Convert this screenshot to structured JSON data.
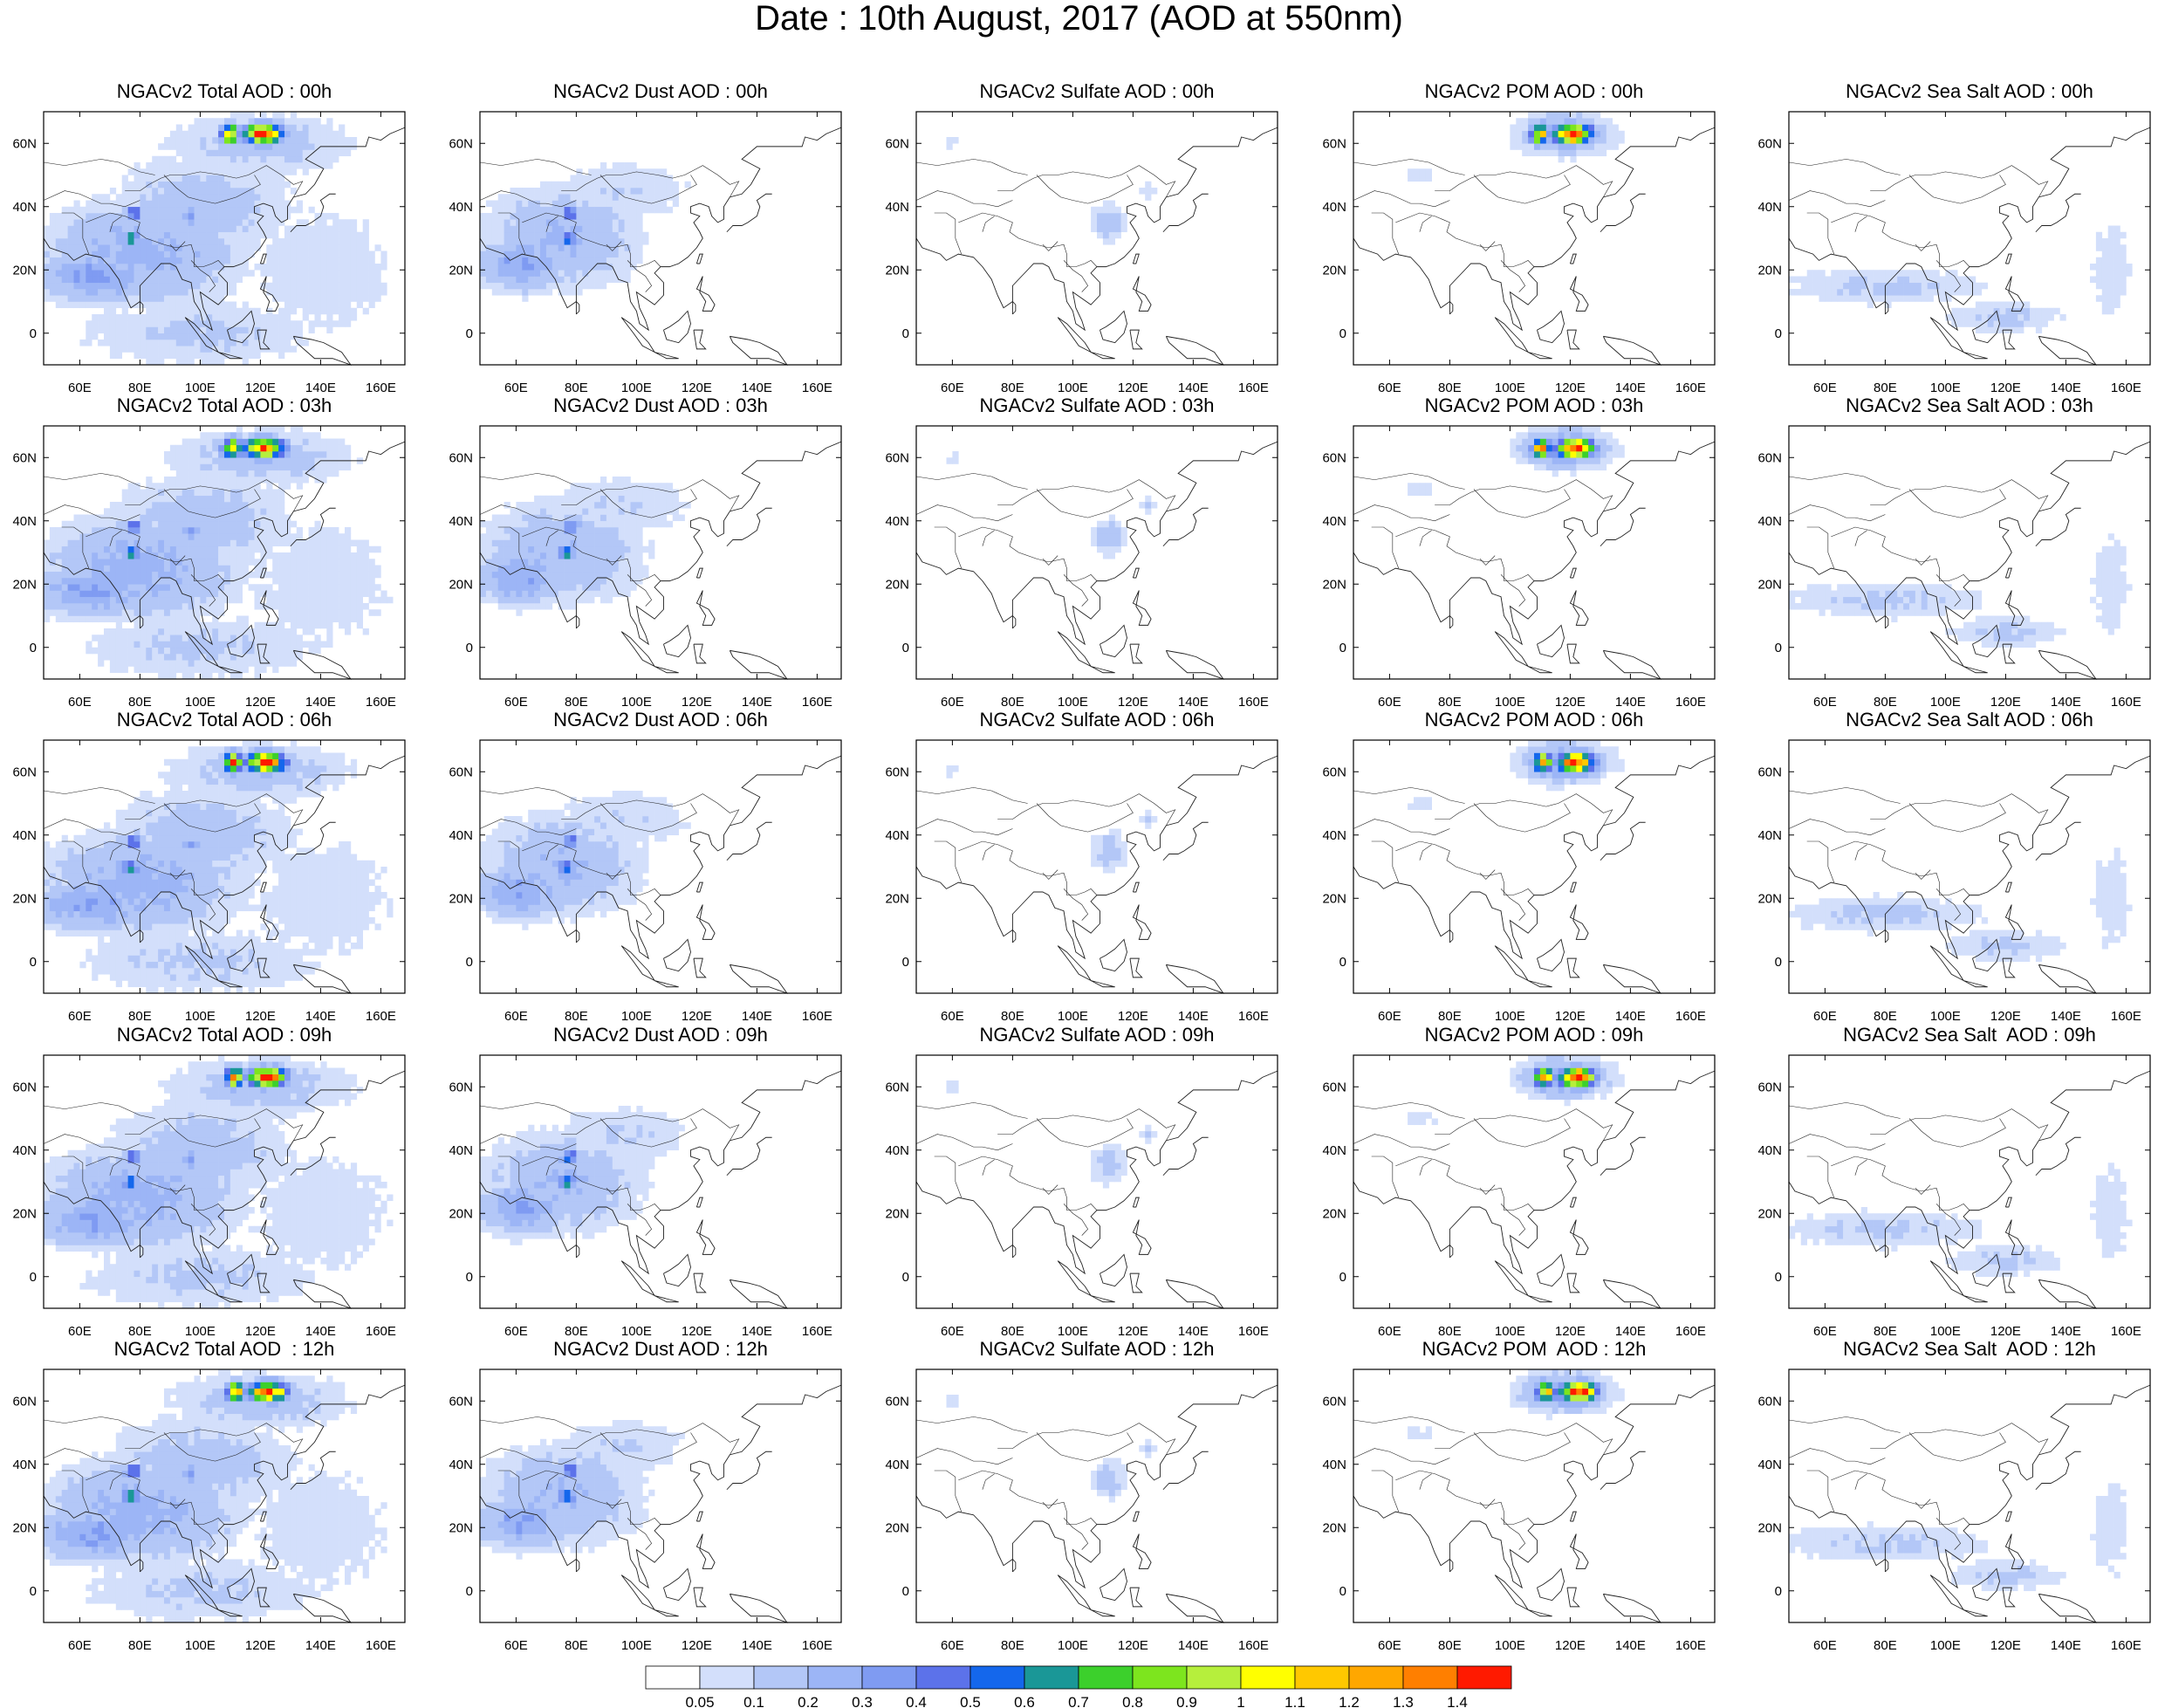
{
  "title": "Date : 10th August, 2017 (AOD at 550nm)",
  "columns": [
    "total",
    "dust",
    "sulfate",
    "pom",
    "seasalt"
  ],
  "panel_titles": [
    [
      "NGACv2 Total AOD : 00h",
      "NGACv2 Dust AOD : 00h",
      "NGACv2 Sulfate AOD : 00h",
      "NGACv2 POM AOD : 00h",
      "NGACv2 Sea Salt AOD : 00h"
    ],
    [
      "NGACv2 Total AOD : 03h",
      "NGACv2 Dust AOD : 03h",
      "NGACv2 Sulfate AOD : 03h",
      "NGACv2 POM AOD : 03h",
      "NGACv2 Sea Salt AOD : 03h"
    ],
    [
      "NGACv2 Total AOD : 06h",
      "NGACv2 Dust AOD : 06h",
      "NGACv2 Sulfate AOD : 06h",
      "NGACv2 POM AOD : 06h",
      "NGACv2 Sea Salt AOD : 06h"
    ],
    [
      "NGACv2 Total AOD : 09h",
      "NGACv2 Dust AOD : 09h",
      "NGACv2 Sulfate AOD : 09h",
      "NGACv2 POM AOD : 09h",
      "NGACv2 Sea Salt  AOD : 09h"
    ],
    [
      "NGACv2 Total AOD  : 12h",
      "NGACv2 Dust AOD : 12h",
      "NGACv2 Sulfate AOD : 12h",
      "NGACv2 POM  AOD : 12h",
      "NGACv2 Sea Salt  AOD : 12h"
    ]
  ],
  "map": {
    "lon_range": [
      48,
      168
    ],
    "lat_range": [
      -10,
      70
    ],
    "x_ticks": [
      "60E",
      "80E",
      "100E",
      "120E",
      "140E",
      "160E"
    ],
    "x_tick_values": [
      60,
      80,
      100,
      120,
      140,
      160
    ],
    "y_ticks": [
      "0",
      "20N",
      "40N",
      "60N"
    ],
    "y_tick_values": [
      0,
      20,
      40,
      60
    ]
  },
  "colorbar": {
    "labels": [
      "0.05",
      "0.1",
      "0.2",
      "0.3",
      "0.4",
      "0.5",
      "0.6",
      "0.7",
      "0.8",
      "0.9",
      "1",
      "1.1",
      "1.2",
      "1.3",
      "1.4"
    ],
    "colors": [
      "#ffffff",
      "#d3dffb",
      "#b3c7f7",
      "#9cb5f6",
      "#7f9bf2",
      "#5c72ea",
      "#1467ec",
      "#1a9797",
      "#3cd02c",
      "#7de51e",
      "#b6ef3c",
      "#ffff00",
      "#ffc800",
      "#ffa700",
      "#ff7f00",
      "#ff1a00"
    ]
  },
  "features": {
    "total": [
      {
        "lon": 80,
        "lat": 25,
        "rx": 30,
        "ry": 15,
        "v": 0.25
      },
      {
        "lon": 65,
        "lat": 18,
        "rx": 20,
        "ry": 8,
        "v": 0.3
      },
      {
        "lon": 100,
        "lat": 40,
        "rx": 30,
        "ry": 15,
        "v": 0.15
      },
      {
        "lon": 120,
        "lat": 60,
        "rx": 30,
        "ry": 9,
        "v": 0.15
      },
      {
        "lon": 140,
        "lat": 20,
        "rx": 30,
        "ry": 25,
        "v": 0.08
      },
      {
        "lon": 100,
        "lat": 0,
        "rx": 40,
        "ry": 10,
        "v": 0.12
      },
      {
        "lon": 78,
        "lat": 38,
        "rx": 3,
        "ry": 2,
        "v": 0.6
      },
      {
        "lon": 77,
        "lat": 30,
        "rx": 2.5,
        "ry": 2,
        "v": 0.75
      },
      {
        "lon": 110,
        "lat": 63,
        "rx": 3,
        "ry": 3,
        "v": 1.2
      },
      {
        "lon": 121,
        "lat": 63,
        "rx": 6,
        "ry": 3,
        "v": 1.45
      },
      {
        "lon": 97,
        "lat": 37,
        "rx": 3,
        "ry": 3,
        "v": 0.35
      }
    ],
    "dust": [
      {
        "lon": 75,
        "lat": 30,
        "rx": 25,
        "ry": 15,
        "v": 0.2
      },
      {
        "lon": 62,
        "lat": 22,
        "rx": 14,
        "ry": 8,
        "v": 0.3
      },
      {
        "lon": 95,
        "lat": 45,
        "rx": 25,
        "ry": 10,
        "v": 0.1
      },
      {
        "lon": 78,
        "lat": 38,
        "rx": 3,
        "ry": 2,
        "v": 0.6
      },
      {
        "lon": 77,
        "lat": 30,
        "rx": 2.5,
        "ry": 2,
        "v": 0.75
      }
    ],
    "sulfate": [
      {
        "lon": 112,
        "lat": 35,
        "rx": 6,
        "ry": 6,
        "v": 0.15
      },
      {
        "lon": 60,
        "lat": 60,
        "rx": 4,
        "ry": 1.5,
        "v": 0.1
      },
      {
        "lon": 125,
        "lat": 45,
        "rx": 3,
        "ry": 3,
        "v": 0.1
      }
    ],
    "pom": [
      {
        "lon": 118,
        "lat": 63,
        "rx": 14,
        "ry": 6,
        "v": 0.3
      },
      {
        "lon": 110,
        "lat": 63,
        "rx": 3,
        "ry": 3,
        "v": 1.2
      },
      {
        "lon": 121,
        "lat": 63,
        "rx": 6,
        "ry": 3,
        "v": 1.45
      },
      {
        "lon": 135,
        "lat": 62,
        "rx": 5,
        "ry": 2,
        "v": 0.1
      },
      {
        "lon": 70,
        "lat": 50,
        "rx": 8,
        "ry": 3,
        "v": 0.07
      }
    ],
    "seasalt": [
      {
        "lon": 80,
        "lat": 15,
        "rx": 35,
        "ry": 6,
        "v": 0.12
      },
      {
        "lon": 120,
        "lat": 5,
        "rx": 20,
        "ry": 5,
        "v": 0.12
      },
      {
        "lon": 155,
        "lat": 20,
        "rx": 8,
        "ry": 20,
        "v": 0.08
      }
    ]
  }
}
